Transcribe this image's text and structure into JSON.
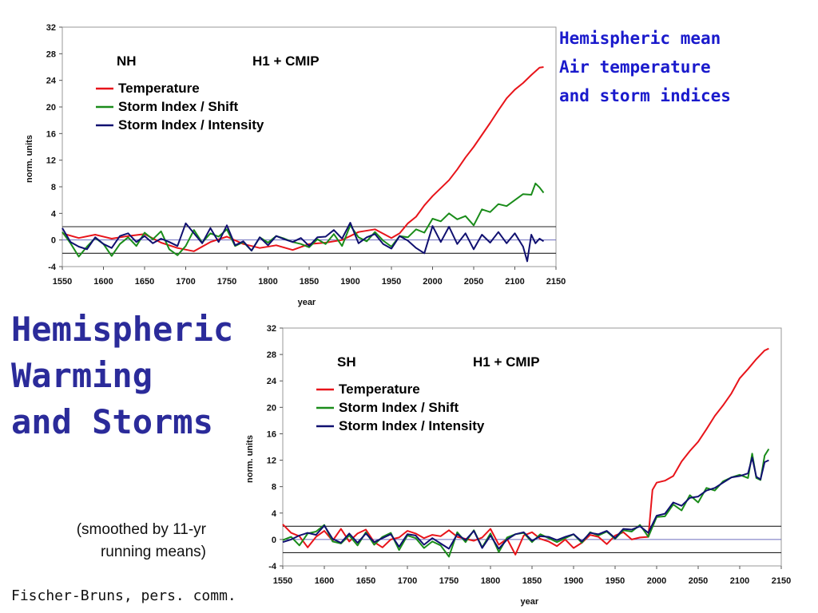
{
  "slide": {
    "title_lines": [
      "Hemispheric",
      "Warming",
      "and Storms"
    ],
    "caption_lines": [
      "Hemispheric mean",
      "Air temperature",
      "and storm indices"
    ],
    "note_lines": [
      "(smoothed by 11-yr",
      "running means)"
    ],
    "credit": "Fischer-Bruns, pers. comm."
  },
  "chart_data": [
    {
      "type": "line",
      "region": "NH",
      "scenario": "H1 + CMIP",
      "xlabel": "year",
      "ylabel": "norm. units",
      "xlim": [
        1550,
        2150
      ],
      "ylim": [
        -4,
        32
      ],
      "xticks": [
        1550,
        1600,
        1650,
        1700,
        1750,
        1800,
        1850,
        1900,
        1950,
        2000,
        2050,
        2100,
        2150
      ],
      "yticks": [
        -4,
        0,
        4,
        8,
        12,
        16,
        20,
        24,
        28,
        32
      ],
      "reference_lines": [
        2,
        -2
      ],
      "grid": false,
      "legend_position": "top-left",
      "series": [
        {
          "name": "Temperature",
          "color": "#e8141a",
          "x": [
            1550,
            1570,
            1590,
            1610,
            1630,
            1650,
            1670,
            1690,
            1710,
            1730,
            1750,
            1770,
            1790,
            1810,
            1830,
            1850,
            1870,
            1890,
            1910,
            1930,
            1950,
            1960,
            1970,
            1980,
            1990,
            2000,
            2010,
            2020,
            2030,
            2040,
            2050,
            2060,
            2070,
            2080,
            2090,
            2100,
            2110,
            2120,
            2130,
            2135
          ],
          "values": [
            1.0,
            0.3,
            0.8,
            0.2,
            0.6,
            0.9,
            -0.4,
            -1.2,
            -1.7,
            -0.3,
            0.5,
            -0.6,
            -1.2,
            -0.8,
            -1.5,
            -0.6,
            -0.4,
            0.0,
            1.2,
            1.6,
            0.3,
            1.0,
            2.5,
            3.5,
            5.2,
            6.6,
            7.8,
            9.0,
            10.6,
            12.4,
            14.0,
            15.8,
            17.6,
            19.5,
            21.3,
            22.6,
            23.6,
            24.8,
            25.9,
            26.0
          ]
        },
        {
          "name": "Storm Index / Shift",
          "color": "#1a8c1a",
          "x": [
            1550,
            1560,
            1570,
            1580,
            1590,
            1600,
            1610,
            1620,
            1630,
            1640,
            1650,
            1660,
            1670,
            1680,
            1690,
            1700,
            1710,
            1720,
            1730,
            1740,
            1750,
            1760,
            1770,
            1780,
            1790,
            1800,
            1810,
            1820,
            1830,
            1840,
            1850,
            1860,
            1870,
            1880,
            1890,
            1900,
            1910,
            1920,
            1930,
            1940,
            1950,
            1960,
            1970,
            1980,
            1990,
            2000,
            2010,
            2020,
            2030,
            2040,
            2050,
            2060,
            2070,
            2080,
            2090,
            2100,
            2110,
            2120,
            2125,
            2130,
            2135
          ],
          "values": [
            1.2,
            -0.5,
            -2.5,
            -1.0,
            0.3,
            -0.6,
            -2.4,
            -0.6,
            0.4,
            -0.9,
            1.1,
            0.1,
            1.3,
            -1.4,
            -2.3,
            -0.9,
            1.5,
            -0.4,
            1.0,
            0.5,
            1.6,
            -0.9,
            -0.3,
            -1.6,
            0.4,
            -0.4,
            0.6,
            0.2,
            -0.3,
            -0.6,
            -1.1,
            0.1,
            -0.6,
            0.9,
            -0.9,
            2.2,
            0.4,
            -0.2,
            1.2,
            -0.1,
            -1.0,
            0.6,
            0.4,
            1.6,
            1.1,
            3.2,
            2.8,
            4.0,
            3.1,
            3.6,
            2.2,
            4.6,
            4.2,
            5.4,
            5.1,
            6.0,
            6.9,
            6.8,
            8.5,
            7.9,
            7.1
          ]
        },
        {
          "name": "Storm Index / Intensity",
          "color": "#101070",
          "x": [
            1550,
            1560,
            1570,
            1580,
            1590,
            1600,
            1610,
            1620,
            1630,
            1640,
            1650,
            1660,
            1670,
            1680,
            1690,
            1700,
            1710,
            1720,
            1730,
            1740,
            1750,
            1760,
            1770,
            1780,
            1790,
            1800,
            1810,
            1820,
            1830,
            1840,
            1850,
            1860,
            1870,
            1880,
            1890,
            1900,
            1910,
            1920,
            1930,
            1940,
            1950,
            1960,
            1970,
            1980,
            1990,
            2000,
            2010,
            2020,
            2030,
            2040,
            2050,
            2060,
            2070,
            2080,
            2090,
            2100,
            2110,
            2115,
            2120,
            2125,
            2130,
            2135
          ],
          "values": [
            1.8,
            -0.3,
            -1.0,
            -1.4,
            0.4,
            -0.6,
            -1.2,
            0.6,
            1.0,
            -0.3,
            0.6,
            -0.5,
            0.2,
            -0.3,
            -0.9,
            2.5,
            1.0,
            -0.5,
            1.8,
            -0.3,
            2.2,
            -0.8,
            -0.2,
            -1.6,
            0.4,
            -0.8,
            0.6,
            0.1,
            -0.3,
            0.3,
            -0.9,
            0.4,
            0.5,
            1.5,
            0.2,
            2.6,
            -0.5,
            0.4,
            0.9,
            -0.6,
            -1.3,
            0.6,
            -0.1,
            -1.2,
            -2.0,
            2.1,
            -0.3,
            2.0,
            -0.6,
            1.0,
            -1.4,
            0.8,
            -0.4,
            1.2,
            -0.5,
            1.0,
            -1.0,
            -3.2,
            0.8,
            -0.5,
            0.2,
            -0.2
          ]
        }
      ]
    },
    {
      "type": "line",
      "region": "SH",
      "scenario": "H1 + CMIP",
      "xlabel": "year",
      "ylabel": "norm. units",
      "xlim": [
        1550,
        2150
      ],
      "ylim": [
        -4,
        32
      ],
      "xticks": [
        1550,
        1600,
        1650,
        1700,
        1750,
        1800,
        1850,
        1900,
        1950,
        2000,
        2050,
        2100,
        2150
      ],
      "yticks": [
        -4,
        0,
        4,
        8,
        12,
        16,
        20,
        24,
        28,
        32
      ],
      "reference_lines": [
        2,
        -2
      ],
      "grid": false,
      "legend_position": "top-left",
      "series": [
        {
          "name": "Temperature",
          "color": "#e8141a",
          "x": [
            1550,
            1560,
            1570,
            1580,
            1590,
            1600,
            1610,
            1620,
            1630,
            1640,
            1650,
            1660,
            1670,
            1680,
            1690,
            1700,
            1710,
            1720,
            1730,
            1740,
            1750,
            1760,
            1770,
            1780,
            1790,
            1800,
            1810,
            1820,
            1830,
            1840,
            1850,
            1860,
            1870,
            1880,
            1890,
            1900,
            1910,
            1920,
            1930,
            1940,
            1950,
            1960,
            1970,
            1980,
            1990,
            1995,
            2000,
            2010,
            2020,
            2030,
            2040,
            2050,
            2060,
            2070,
            2080,
            2090,
            2100,
            2110,
            2120,
            2130,
            2135
          ],
          "values": [
            2.3,
            1.0,
            0.5,
            -1.2,
            0.4,
            1.3,
            -0.2,
            1.6,
            -0.3,
            0.9,
            1.5,
            -0.4,
            -1.2,
            0.0,
            0.3,
            1.3,
            0.9,
            0.2,
            0.7,
            0.5,
            1.4,
            0.4,
            0.1,
            -0.2,
            0.3,
            1.6,
            -0.8,
            0.1,
            -2.3,
            0.6,
            1.1,
            0.1,
            -0.3,
            -1.0,
            0.0,
            -1.3,
            -0.5,
            0.7,
            0.4,
            -0.7,
            0.6,
            1.1,
            0.0,
            0.3,
            0.4,
            7.5,
            8.6,
            8.9,
            9.6,
            11.8,
            13.4,
            14.8,
            16.7,
            18.7,
            20.3,
            22.1,
            24.4,
            25.8,
            27.3,
            28.6,
            28.9
          ]
        },
        {
          "name": "Storm Index / Shift",
          "color": "#1a8c1a",
          "x": [
            1550,
            1560,
            1570,
            1580,
            1590,
            1600,
            1610,
            1620,
            1630,
            1640,
            1650,
            1660,
            1670,
            1680,
            1690,
            1700,
            1710,
            1720,
            1730,
            1740,
            1750,
            1760,
            1770,
            1780,
            1790,
            1800,
            1810,
            1820,
            1830,
            1840,
            1850,
            1860,
            1870,
            1880,
            1890,
            1900,
            1910,
            1920,
            1930,
            1940,
            1950,
            1960,
            1970,
            1980,
            1990,
            2000,
            2010,
            2020,
            2030,
            2040,
            2050,
            2060,
            2070,
            2080,
            2090,
            2100,
            2110,
            2115,
            2120,
            2125,
            2130,
            2135
          ],
          "values": [
            -0.1,
            0.4,
            -0.9,
            0.9,
            1.2,
            2.2,
            -0.3,
            -0.6,
            0.6,
            -0.9,
            1.1,
            -0.8,
            0.4,
            1.0,
            -1.6,
            0.6,
            0.2,
            -1.3,
            -0.3,
            -0.9,
            -2.6,
            1.1,
            -0.4,
            1.4,
            -1.2,
            0.9,
            -1.9,
            0.3,
            0.8,
            1.0,
            -0.4,
            0.8,
            0.2,
            -0.4,
            0.2,
            0.8,
            -0.5,
            1.1,
            0.6,
            1.2,
            0.1,
            1.4,
            1.2,
            2.2,
            0.4,
            3.4,
            3.5,
            5.3,
            4.4,
            6.7,
            5.6,
            7.8,
            7.4,
            8.8,
            9.4,
            9.8,
            9.3,
            13.0,
            9.3,
            9.0,
            12.7,
            13.7
          ]
        },
        {
          "name": "Storm Index / Intensity",
          "color": "#101070",
          "x": [
            1550,
            1560,
            1570,
            1580,
            1590,
            1600,
            1610,
            1620,
            1630,
            1640,
            1650,
            1660,
            1670,
            1680,
            1690,
            1700,
            1710,
            1720,
            1730,
            1740,
            1750,
            1760,
            1770,
            1780,
            1790,
            1800,
            1810,
            1820,
            1830,
            1840,
            1850,
            1860,
            1870,
            1880,
            1890,
            1900,
            1910,
            1920,
            1930,
            1940,
            1950,
            1960,
            1970,
            1980,
            1990,
            2000,
            2010,
            2020,
            2030,
            2040,
            2050,
            2060,
            2070,
            2080,
            2090,
            2100,
            2110,
            2115,
            2120,
            2125,
            2130,
            2135
          ],
          "values": [
            -0.4,
            0.0,
            0.6,
            1.0,
            0.7,
            2.1,
            0.1,
            -0.5,
            0.9,
            -0.5,
            0.9,
            -0.4,
            0.2,
            0.8,
            -1.1,
            0.8,
            0.6,
            -0.8,
            0.2,
            -0.6,
            -1.4,
            0.8,
            -0.1,
            1.3,
            -1.3,
            0.6,
            -1.4,
            0.0,
            0.8,
            1.1,
            -0.2,
            0.5,
            0.4,
            -0.1,
            0.4,
            0.8,
            -0.3,
            1.0,
            0.8,
            1.3,
            0.2,
            1.6,
            1.5,
            2.0,
            1.0,
            3.6,
            3.9,
            5.6,
            5.1,
            6.3,
            6.5,
            7.4,
            7.8,
            8.6,
            9.4,
            9.6,
            10.0,
            12.4,
            9.5,
            9.1,
            11.7,
            12.0
          ]
        }
      ]
    }
  ]
}
